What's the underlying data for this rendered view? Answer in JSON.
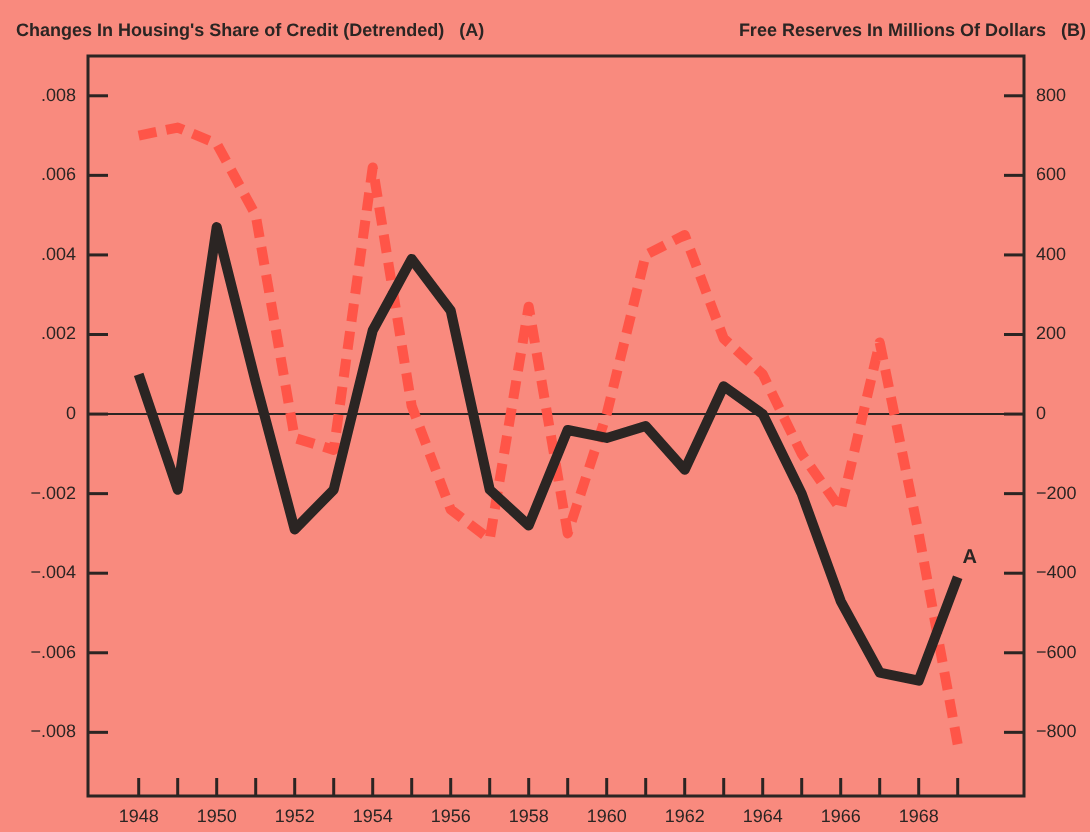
{
  "chart_data": {
    "type": "line",
    "ylabel": "Changes In Housing's Share of Credit (Detrended)   (A)",
    "y2label": "Free Reserves In Millions Of Dollars   (B)",
    "x": [
      1948,
      1949,
      1950,
      1951,
      1952,
      1953,
      1954,
      1955,
      1956,
      1957,
      1958,
      1959,
      1960,
      1961,
      1962,
      1963,
      1964,
      1965,
      1966,
      1967,
      1968,
      1969
    ],
    "series": [
      {
        "color": "#2b2523",
        "line_style": "solid",
        "values": [
          0.001,
          -0.0019,
          0.0047,
          0.0008,
          -0.0029,
          -0.0019,
          0.0021,
          0.0039,
          0.0026,
          -0.0019,
          -0.0028,
          -0.0004,
          -0.0006,
          -0.0003,
          -0.0014,
          0.0007,
          0,
          -0.002,
          -0.0047,
          -0.0065,
          -0.0067,
          -0.0041
        ]
      },
      {
        "color": "#ff5548",
        "line_style": "dashed",
        "axis": "y2",
        "values": [
          700,
          720,
          680,
          500,
          -60,
          -90,
          620,
          20,
          -240,
          -315,
          270,
          -300,
          0,
          400,
          450,
          190,
          100,
          -100,
          -240,
          180,
          -300,
          -830
        ]
      }
    ],
    "xlim": [
      1946.7,
      1970.7
    ],
    "xticks": [
      1948,
      {
        "value": 1949,
        "label": null
      },
      1950,
      {
        "value": 1951,
        "label": null
      },
      1952,
      {
        "value": 1953,
        "label": null
      },
      1954,
      {
        "value": 1955,
        "label": null
      },
      1956,
      {
        "value": 1957,
        "label": null
      },
      1958,
      {
        "value": 1959,
        "label": null
      },
      1960,
      {
        "value": 1961,
        "label": null
      },
      1962,
      {
        "value": 1963,
        "label": null
      },
      1964,
      {
        "value": 1965,
        "label": null
      },
      1966,
      {
        "value": 1967,
        "label": null
      },
      1968,
      {
        "value": 1969,
        "label": null
      }
    ],
    "ylim": [
      -0.0096,
      0.009
    ],
    "yticks": [
      {
        "value": 0.008,
        "label": ".008"
      },
      {
        "value": 0.006,
        "label": ".006"
      },
      {
        "value": 0.004,
        "label": ".004"
      },
      {
        "value": 0.002,
        "label": ".002"
      },
      0,
      {
        "value": -0.002,
        "label": "−.002"
      },
      {
        "value": -0.004,
        "label": "−.004"
      },
      {
        "value": -0.006,
        "label": "−.006"
      },
      {
        "value": -0.008,
        "label": "−.008"
      }
    ],
    "y2lim": [
      -960,
      900
    ],
    "y2ticks": [
      800,
      600,
      400,
      200,
      0,
      {
        "value": -200,
        "label": "−200"
      },
      {
        "value": -400,
        "label": "−400"
      },
      {
        "value": -600,
        "label": "−600"
      },
      {
        "value": -800,
        "label": "−800"
      }
    ],
    "ref_lines": [
      {
        "axis": "y",
        "value": 0,
        "color": "#2b2523"
      }
    ],
    "annotations": [
      "A"
    ],
    "grid": false,
    "legend": false,
    "marker": "none"
  }
}
